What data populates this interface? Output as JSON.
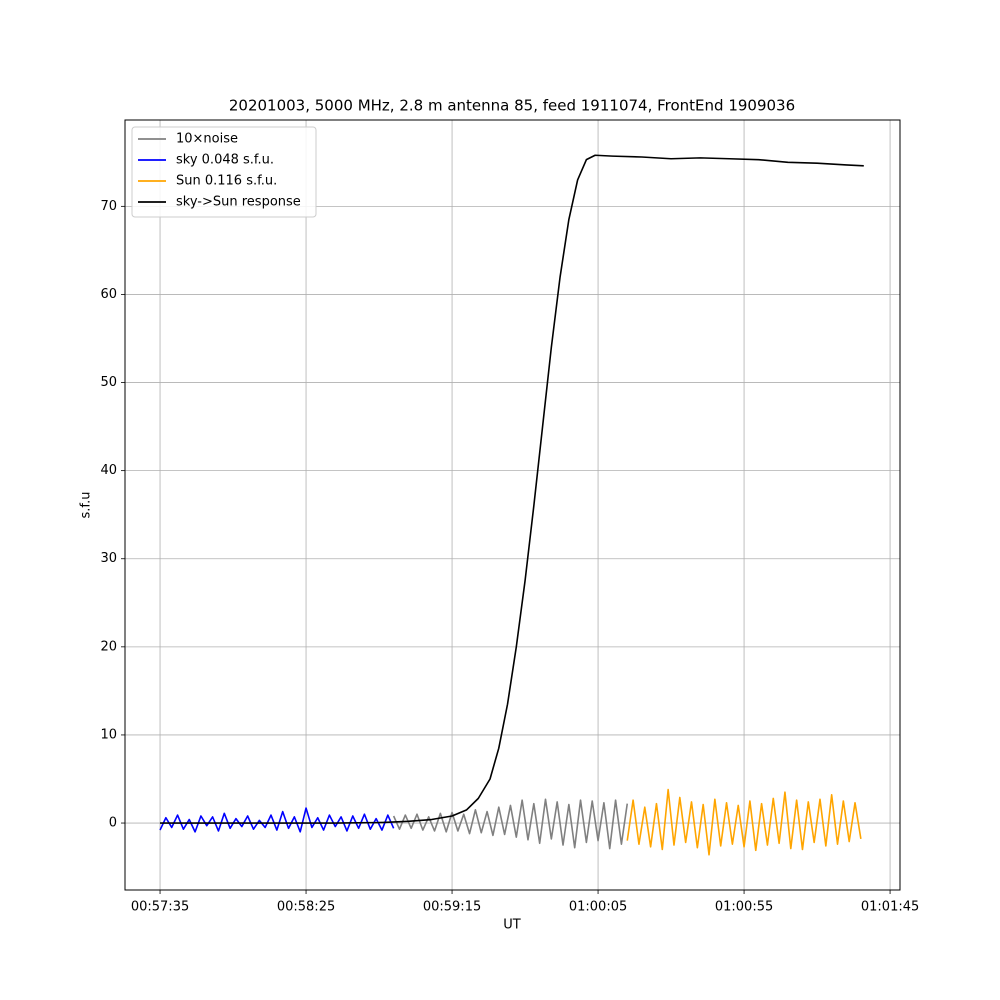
{
  "chart_data": {
    "type": "line",
    "title": "20201003, 5000 MHz, 2.8 m antenna 85, feed 1911074, FrontEnd 1909036",
    "xlabel": "UT",
    "ylabel": "s.f.u",
    "xlim": [
      3443,
      3708.4
    ],
    "ylim": [
      -7.6,
      79.8
    ],
    "xticks": [
      {
        "value": 3455,
        "label": "00:57:35"
      },
      {
        "value": 3505,
        "label": "00:58:25"
      },
      {
        "value": 3555,
        "label": "00:59:15"
      },
      {
        "value": 3605,
        "label": "01:00:05"
      },
      {
        "value": 3655,
        "label": "01:00:55"
      },
      {
        "value": 3705,
        "label": "01:01:45"
      }
    ],
    "yticks": [
      0,
      10,
      20,
      30,
      40,
      50,
      60,
      70
    ],
    "grid": true,
    "legend": "upper-left",
    "series": [
      {
        "name": "10×noise",
        "color": "#808080",
        "x": [
          3535,
          3537,
          3539,
          3541,
          3543,
          3545,
          3547,
          3549,
          3551,
          3553,
          3555,
          3557,
          3559,
          3561,
          3563,
          3565,
          3567,
          3569,
          3571,
          3573,
          3575,
          3577,
          3579,
          3581,
          3583,
          3585,
          3587,
          3589,
          3591,
          3593,
          3595,
          3597,
          3599,
          3601,
          3603,
          3605,
          3607,
          3609,
          3611,
          3613,
          3615
        ],
        "values": [
          0.8,
          -0.7,
          0.9,
          -0.6,
          1.0,
          -0.8,
          0.7,
          -0.9,
          1.1,
          -1.0,
          1.2,
          -0.9,
          1.0,
          -1.2,
          1.5,
          -1.1,
          1.3,
          -1.4,
          1.8,
          -1.3,
          2.0,
          -1.6,
          2.6,
          -1.9,
          2.2,
          -2.3,
          2.7,
          -1.8,
          2.4,
          -2.5,
          2.1,
          -2.8,
          2.6,
          -2.2,
          2.5,
          -2.0,
          2.3,
          -2.9,
          2.6,
          -2.4,
          2.2
        ]
      },
      {
        "name": "sky 0.048 s.f.u.",
        "color": "#0000ff",
        "x": [
          3455,
          3457,
          3459,
          3461,
          3463,
          3465,
          3467,
          3469,
          3471,
          3473,
          3475,
          3477,
          3479,
          3481,
          3483,
          3485,
          3487,
          3489,
          3491,
          3493,
          3495,
          3497,
          3499,
          3501,
          3503,
          3505,
          3507,
          3509,
          3511,
          3513,
          3515,
          3517,
          3519,
          3521,
          3523,
          3525,
          3527,
          3529,
          3531,
          3533,
          3535
        ],
        "values": [
          -0.8,
          0.6,
          -0.5,
          0.9,
          -0.7,
          0.4,
          -1.0,
          0.8,
          -0.3,
          0.7,
          -0.9,
          1.1,
          -0.6,
          0.5,
          -0.4,
          0.8,
          -0.7,
          0.3,
          -0.5,
          0.9,
          -0.8,
          1.3,
          -0.6,
          0.7,
          -1.0,
          1.7,
          -0.5,
          0.6,
          -0.8,
          0.9,
          -0.4,
          0.7,
          -0.9,
          0.8,
          -0.6,
          1.0,
          -0.7,
          0.5,
          -0.8,
          0.9,
          -0.6
        ]
      },
      {
        "name": "Sun 0.116 s.f.u.",
        "color": "#ffa500",
        "x": [
          3615,
          3617,
          3619,
          3621,
          3623,
          3625,
          3627,
          3629,
          3631,
          3633,
          3635,
          3637,
          3639,
          3641,
          3643,
          3645,
          3647,
          3649,
          3651,
          3653,
          3655,
          3657,
          3659,
          3661,
          3663,
          3665,
          3667,
          3669,
          3671,
          3673,
          3675,
          3677,
          3679,
          3681,
          3683,
          3685,
          3687,
          3689,
          3691,
          3693,
          3695
        ],
        "values": [
          -2.0,
          2.6,
          -2.4,
          1.8,
          -2.7,
          2.2,
          -3.0,
          3.8,
          -2.5,
          2.9,
          -2.2,
          2.4,
          -2.8,
          2.1,
          -3.6,
          2.7,
          -2.6,
          2.3,
          -2.4,
          2.0,
          -2.7,
          2.5,
          -3.1,
          2.2,
          -2.5,
          2.8,
          -2.3,
          3.5,
          -2.9,
          2.6,
          -3.0,
          2.4,
          -2.2,
          2.7,
          -2.6,
          3.2,
          -2.4,
          2.5,
          -2.1,
          2.3,
          -1.8
        ]
      },
      {
        "name": "sky->Sun response",
        "color": "#000000",
        "x": [
          3455,
          3475,
          3495,
          3515,
          3530,
          3540,
          3548,
          3555,
          3560,
          3564,
          3568,
          3571,
          3574,
          3577,
          3580,
          3583,
          3586,
          3589,
          3592,
          3595,
          3598,
          3601,
          3604,
          3610,
          3620,
          3630,
          3640,
          3650,
          3660,
          3670,
          3680,
          3690,
          3696
        ],
        "values": [
          0,
          0,
          0,
          0,
          0.05,
          0.2,
          0.4,
          0.8,
          1.5,
          2.8,
          5,
          8.5,
          13.5,
          20,
          27.5,
          36,
          45,
          54,
          62,
          68.5,
          73,
          75.3,
          75.8,
          75.7,
          75.6,
          75.4,
          75.5,
          75.4,
          75.3,
          75.0,
          74.9,
          74.7,
          74.6
        ]
      }
    ]
  }
}
